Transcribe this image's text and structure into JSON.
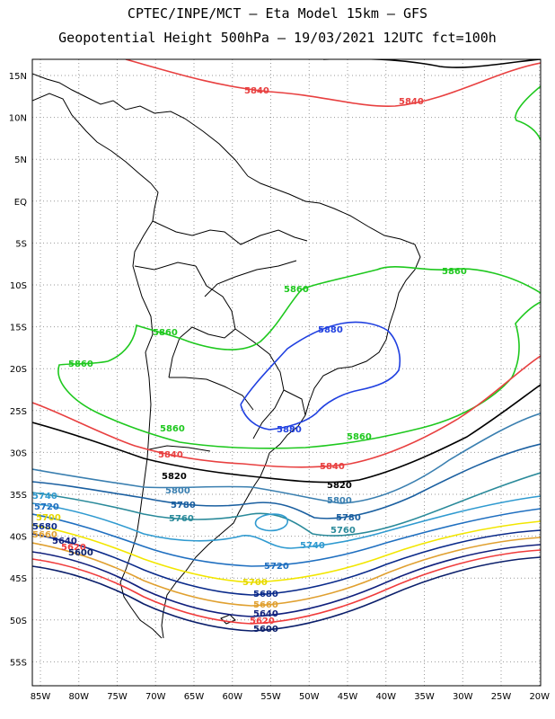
{
  "header": {
    "line1": "CPTEC/INPE/MCT –  Eta Model 15km – GFS",
    "line2": "Geopotential Height 500hPa – 19/03/2021 12UTC fct=100h"
  },
  "map": {
    "lat_labels": [
      "15N",
      "10N",
      "5N",
      "EQ",
      "5S",
      "10S",
      "15S",
      "20S",
      "25S",
      "30S",
      "35S",
      "40S",
      "45S",
      "50S",
      "55S"
    ],
    "lon_labels": [
      "85W",
      "80W",
      "75W",
      "70W",
      "65W",
      "60W",
      "55W",
      "50W",
      "45W",
      "40W",
      "35W",
      "30W",
      "25W",
      "20W"
    ],
    "colors": {
      "5900": "#0b1f6b",
      "5920": "#f03c3c",
      "5940": "#11207d",
      "5960": "#e0a030",
      "5980": "#0a2a8a",
      "5700": "#f2e600",
      "5720": "#1f6fc0",
      "5740": "#2f9ad0",
      "5760": "#2a8a9a",
      "5780": "#1a5fa0",
      "5800": "#3a7fb0",
      "5820": "#000000",
      "5840": "#e84040",
      "5860": "#1ec81e",
      "5880": "#2040e0",
      "coast": "#000000",
      "grid": "#999999"
    },
    "contour_labels": [
      {
        "text": "5840",
        "color": "5840"
      },
      {
        "text": "5840",
        "color": "5840"
      },
      {
        "text": "5860",
        "color": "5860"
      },
      {
        "text": "5860",
        "color": "5860"
      },
      {
        "text": "5860",
        "color": "5860"
      },
      {
        "text": "5860",
        "color": "5860"
      },
      {
        "text": "5860",
        "color": "5860"
      },
      {
        "text": "5860",
        "color": "5860"
      },
      {
        "text": "5880",
        "color": "5880"
      },
      {
        "text": "5880",
        "color": "5880"
      },
      {
        "text": "5840",
        "color": "5840"
      },
      {
        "text": "5840",
        "color": "5840"
      },
      {
        "text": "5820",
        "color": "5820"
      },
      {
        "text": "5820",
        "color": "5820"
      },
      {
        "text": "5800",
        "color": "5800"
      },
      {
        "text": "5800",
        "color": "5800"
      },
      {
        "text": "5780",
        "color": "5780"
      },
      {
        "text": "5780",
        "color": "5780"
      },
      {
        "text": "5760",
        "color": "5760"
      },
      {
        "text": "5760",
        "color": "5760"
      },
      {
        "text": "5740",
        "color": "5740"
      },
      {
        "text": "5740",
        "color": "5740"
      },
      {
        "text": "5720",
        "color": "5720"
      },
      {
        "text": "5720",
        "color": "5720"
      },
      {
        "text": "5700",
        "color": "5700"
      },
      {
        "text": "5700",
        "color": "5700"
      },
      {
        "text": "5680",
        "color": "5980"
      },
      {
        "text": "5680",
        "color": "5980"
      },
      {
        "text": "5660",
        "color": "5960"
      },
      {
        "text": "5660",
        "color": "5960"
      },
      {
        "text": "5640",
        "color": "5940"
      },
      {
        "text": "5640",
        "color": "5940"
      },
      {
        "text": "5620",
        "color": "5920"
      },
      {
        "text": "5620",
        "color": "5920"
      },
      {
        "text": "5600",
        "color": "5900"
      },
      {
        "text": "5600",
        "color": "5900"
      }
    ]
  }
}
